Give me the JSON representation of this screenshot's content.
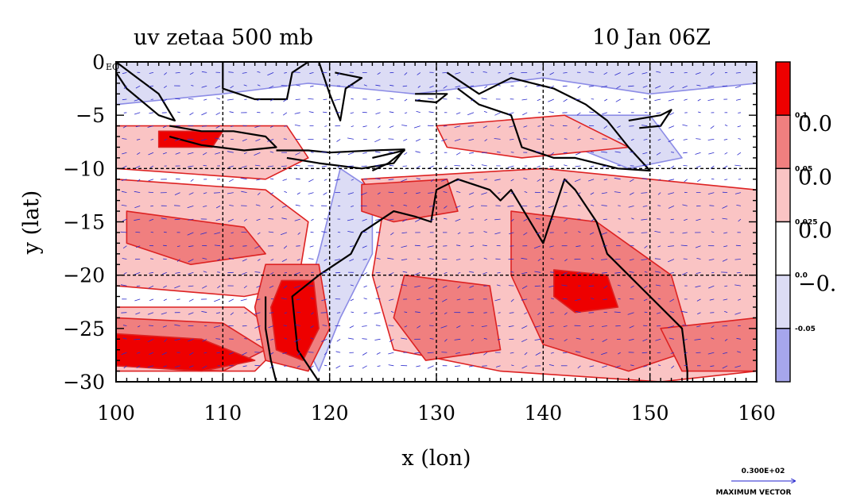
{
  "chart_data": {
    "type": "heatmap",
    "title": "uv zetaa 500 mb",
    "time_label": "10 Jan 06Z",
    "xlabel": "x (lon)",
    "ylabel": "y (lat)",
    "xlim": [
      100,
      160
    ],
    "ylim": [
      -30,
      0
    ],
    "x_ticks": [
      100,
      110,
      120,
      130,
      140,
      150,
      160
    ],
    "y_ticks": [
      0,
      -5,
      -10,
      -15,
      -20,
      -25,
      -30
    ],
    "x_tick_labels": [
      "100",
      "110",
      "120",
      "130",
      "140",
      "150",
      "160"
    ],
    "y_tick_labels": [
      "0",
      "−5",
      "−10",
      "−15",
      "−20",
      "−25",
      "−30"
    ],
    "eq_label": "EQ",
    "grid": true,
    "grid_lon": [
      110,
      120,
      130,
      140,
      150
    ],
    "grid_lat": [
      -10,
      -20
    ],
    "colorbar": {
      "levels": [
        0.1,
        0.05,
        0.025,
        0.0,
        -0.05
      ],
      "level_labels": [
        "0.1",
        "0.05",
        "0.025",
        "0.0",
        "-0.05"
      ],
      "colors": [
        "#ee0000",
        "#f07f7f",
        "#fac4c4",
        "#ffffff",
        "#dcdcf5",
        "#a6a6ec"
      ],
      "side_labels": [
        "0.0",
        "0.0",
        "0.0",
        "−0."
      ]
    },
    "max_vector": {
      "value": "0.300E+02",
      "label": "MAXIMUM VECTOR"
    },
    "zones": [
      {
        "level": -1,
        "pts": [
          [
            100,
            0
          ],
          [
            160,
            0
          ],
          [
            160,
            -2
          ],
          [
            150,
            -3
          ],
          [
            140,
            -1.5
          ],
          [
            128,
            -3
          ],
          [
            118,
            -2
          ],
          [
            110,
            -3
          ],
          [
            100,
            -4
          ]
        ]
      },
      {
        "level": -1,
        "pts": [
          [
            121,
            -10
          ],
          [
            124,
            -12
          ],
          [
            124,
            -18
          ],
          [
            121,
            -24
          ],
          [
            119,
            -29
          ],
          [
            117,
            -25
          ],
          [
            119,
            -18
          ]
        ]
      },
      {
        "level": -1,
        "pts": [
          [
            142,
            -5
          ],
          [
            150,
            -5
          ],
          [
            153,
            -9
          ],
          [
            148,
            -10
          ],
          [
            143,
            -8
          ]
        ]
      },
      {
        "level": 1,
        "pts": [
          [
            100,
            -6
          ],
          [
            116,
            -6
          ],
          [
            118,
            -9
          ],
          [
            114,
            -11
          ],
          [
            100,
            -10
          ]
        ]
      },
      {
        "level": 1,
        "pts": [
          [
            100,
            -11
          ],
          [
            114,
            -12
          ],
          [
            118,
            -15
          ],
          [
            117,
            -21
          ],
          [
            112,
            -22
          ],
          [
            100,
            -21
          ]
        ]
      },
      {
        "level": 1,
        "pts": [
          [
            100,
            -23
          ],
          [
            112,
            -23
          ],
          [
            116,
            -26
          ],
          [
            113,
            -29
          ],
          [
            100,
            -29
          ]
        ]
      },
      {
        "level": 1,
        "pts": [
          [
            123,
            -11
          ],
          [
            140,
            -10
          ],
          [
            150,
            -11
          ],
          [
            160,
            -12
          ],
          [
            160,
            -29
          ],
          [
            151,
            -30
          ],
          [
            136,
            -29
          ],
          [
            126,
            -27
          ],
          [
            124,
            -20
          ],
          [
            125,
            -14
          ]
        ]
      },
      {
        "level": 1,
        "pts": [
          [
            130,
            -6
          ],
          [
            142,
            -5
          ],
          [
            148,
            -8
          ],
          [
            138,
            -9
          ],
          [
            131,
            -8
          ]
        ]
      },
      {
        "level": 2,
        "pts": [
          [
            100,
            -24
          ],
          [
            110,
            -24.5
          ],
          [
            114,
            -27
          ],
          [
            110,
            -29
          ],
          [
            100,
            -28.5
          ]
        ]
      },
      {
        "level": 2,
        "pts": [
          [
            101,
            -14
          ],
          [
            112,
            -15.5
          ],
          [
            114,
            -18
          ],
          [
            107,
            -19
          ],
          [
            101,
            -17
          ]
        ]
      },
      {
        "level": 2,
        "pts": [
          [
            114,
            -19
          ],
          [
            119,
            -19
          ],
          [
            120,
            -25
          ],
          [
            118,
            -29
          ],
          [
            114,
            -28
          ],
          [
            113,
            -23
          ]
        ]
      },
      {
        "level": 2,
        "pts": [
          [
            137,
            -14
          ],
          [
            145,
            -15
          ],
          [
            152,
            -20
          ],
          [
            154,
            -27
          ],
          [
            148,
            -29
          ],
          [
            140,
            -26.5
          ],
          [
            137,
            -20
          ]
        ]
      },
      {
        "level": 2,
        "pts": [
          [
            127,
            -20
          ],
          [
            135,
            -21
          ],
          [
            136,
            -27
          ],
          [
            129,
            -28
          ],
          [
            126,
            -24
          ]
        ]
      },
      {
        "level": 2,
        "pts": [
          [
            123,
            -11.5
          ],
          [
            131,
            -11
          ],
          [
            132,
            -14
          ],
          [
            126,
            -15
          ],
          [
            123,
            -14
          ]
        ]
      },
      {
        "level": 2,
        "pts": [
          [
            151,
            -25
          ],
          [
            160,
            -24
          ],
          [
            160,
            -29
          ],
          [
            153,
            -29
          ]
        ]
      },
      {
        "level": 3,
        "pts": [
          [
            115.5,
            -20.5
          ],
          [
            118.5,
            -20.5
          ],
          [
            119,
            -25
          ],
          [
            117.5,
            -28
          ],
          [
            115,
            -27
          ],
          [
            114.5,
            -23
          ]
        ]
      },
      {
        "level": 3,
        "pts": [
          [
            100,
            -25.5
          ],
          [
            108,
            -26
          ],
          [
            113,
            -28
          ],
          [
            108,
            -29
          ],
          [
            100,
            -28.5
          ]
        ]
      },
      {
        "level": 3,
        "pts": [
          [
            104,
            -6.5
          ],
          [
            110,
            -6.5
          ],
          [
            109,
            -8
          ],
          [
            104,
            -8
          ]
        ]
      },
      {
        "level": 3,
        "pts": [
          [
            141,
            -19.5
          ],
          [
            146,
            -20
          ],
          [
            147,
            -23
          ],
          [
            143,
            -23.5
          ],
          [
            141,
            -22
          ]
        ]
      }
    ],
    "coastlines": [
      {
        "name": "australia",
        "pts": [
          [
            114,
            -22
          ],
          [
            114,
            -25
          ],
          [
            114.5,
            -28
          ],
          [
            115,
            -30
          ],
          [
            119,
            -30
          ],
          [
            117,
            -27
          ],
          [
            116.5,
            -22
          ],
          [
            119,
            -20
          ],
          [
            122,
            -18
          ],
          [
            123,
            -16
          ],
          [
            126,
            -14
          ],
          [
            128,
            -14.5
          ],
          [
            129.5,
            -15
          ],
          [
            130,
            -12
          ],
          [
            132,
            -11
          ],
          [
            135,
            -12
          ],
          [
            136,
            -13
          ],
          [
            137,
            -12
          ],
          [
            140,
            -17
          ],
          [
            141,
            -14
          ],
          [
            142,
            -11
          ],
          [
            143,
            -12
          ],
          [
            145,
            -15
          ],
          [
            146,
            -18
          ],
          [
            148,
            -20
          ],
          [
            150,
            -22
          ],
          [
            153,
            -25
          ],
          [
            153.5,
            -29
          ],
          [
            153.5,
            -30
          ]
        ]
      },
      {
        "name": "sumatra",
        "pts": [
          [
            100,
            0
          ],
          [
            102,
            -1.5
          ],
          [
            104,
            -3
          ],
          [
            105.5,
            -5.5
          ],
          [
            104,
            -5
          ],
          [
            101,
            -2.5
          ],
          [
            100,
            -1
          ]
        ]
      },
      {
        "name": "java",
        "pts": [
          [
            105,
            -6
          ],
          [
            108,
            -6.5
          ],
          [
            111,
            -6.5
          ],
          [
            114,
            -7
          ],
          [
            115,
            -8
          ],
          [
            112,
            -8.3
          ],
          [
            108,
            -7.8
          ],
          [
            105,
            -7
          ]
        ]
      },
      {
        "name": "lesser_sunda",
        "pts": [
          [
            115,
            -8.3
          ],
          [
            118,
            -8.3
          ],
          [
            120,
            -8.5
          ],
          [
            124,
            -8.3
          ],
          [
            127,
            -8.2
          ],
          [
            126,
            -9.5
          ],
          [
            123,
            -10
          ],
          [
            119,
            -9.5
          ],
          [
            116,
            -9
          ]
        ]
      },
      {
        "name": "borneo_s",
        "pts": [
          [
            110,
            0
          ],
          [
            110,
            -2.5
          ],
          [
            113,
            -3.5
          ],
          [
            116,
            -3.5
          ],
          [
            116.5,
            -1
          ],
          [
            118,
            0
          ]
        ]
      },
      {
        "name": "sulawesi",
        "pts": [
          [
            119,
            0
          ],
          [
            120,
            -3
          ],
          [
            121,
            -5.5
          ],
          [
            121.5,
            -2.5
          ],
          [
            123,
            -1.5
          ],
          [
            120.5,
            -1
          ]
        ]
      },
      {
        "name": "new_guinea",
        "pts": [
          [
            131,
            -1
          ],
          [
            134,
            -3
          ],
          [
            137,
            -1.5
          ],
          [
            141,
            -2.5
          ],
          [
            144,
            -4
          ],
          [
            146,
            -5.5
          ],
          [
            148,
            -8
          ],
          [
            150,
            -10.2
          ],
          [
            147,
            -10
          ],
          [
            143,
            -9
          ],
          [
            141,
            -9
          ],
          [
            138,
            -8
          ],
          [
            137,
            -5
          ],
          [
            134,
            -4
          ],
          [
            132,
            -2.5
          ]
        ]
      },
      {
        "name": "seram",
        "pts": [
          [
            128,
            -3
          ],
          [
            131,
            -3
          ],
          [
            130,
            -3.8
          ],
          [
            128,
            -3.6
          ]
        ]
      },
      {
        "name": "new_britain",
        "pts": [
          [
            148,
            -5.5
          ],
          [
            151,
            -5
          ],
          [
            152,
            -4.5
          ],
          [
            151,
            -6
          ],
          [
            149,
            -6.2
          ]
        ]
      },
      {
        "name": "timor",
        "pts": [
          [
            124,
            -9
          ],
          [
            127,
            -8.3
          ],
          [
            125.5,
            -9.5
          ],
          [
            124,
            -10.2
          ]
        ]
      }
    ]
  }
}
